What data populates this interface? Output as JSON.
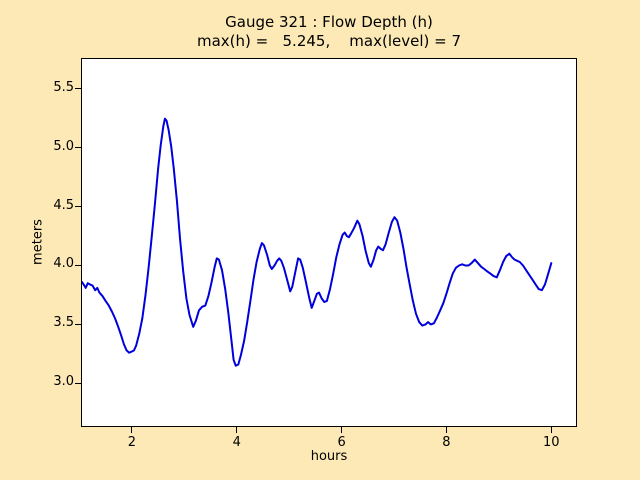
{
  "figure": {
    "background_color": "#FCE9B6",
    "plot_background_color": "#FFFFFF",
    "frame_color": "#000000",
    "title_line1": "Gauge 321 : Flow Depth (h)",
    "title_line2": "max(h) =   5.245,    max(level) = 7"
  },
  "chart_data": {
    "type": "line",
    "title": "Gauge 321 : Flow Depth (h)",
    "subtitle": "max(h) =   5.245,    max(level) = 7",
    "xlabel": "hours",
    "ylabel": "meters",
    "max_h": 5.245,
    "max_level": 7,
    "grid": false,
    "legend": "none",
    "xlim": [
      1.03,
      10.49
    ],
    "ylim": [
      2.63,
      5.76
    ],
    "x_tick_values": [
      2,
      4,
      6,
      8,
      10
    ],
    "x_tick_labels": [
      "2",
      "4",
      "6",
      "8",
      "10"
    ],
    "y_tick_values": [
      3.0,
      3.5,
      4.0,
      4.5,
      5.0,
      5.5
    ],
    "y_tick_labels": [
      "3.0",
      "3.5",
      "4.0",
      "4.5",
      "5.0",
      "5.5"
    ],
    "line_color": "#0000DD",
    "line_width": 2,
    "series": [
      {
        "name": "h",
        "x": [
          1.0,
          1.05,
          1.08,
          1.12,
          1.16,
          1.2,
          1.25,
          1.3,
          1.34,
          1.38,
          1.44,
          1.5,
          1.56,
          1.62,
          1.68,
          1.74,
          1.8,
          1.85,
          1.9,
          1.95,
          2.0,
          2.04,
          2.08,
          2.14,
          2.2,
          2.26,
          2.32,
          2.38,
          2.44,
          2.5,
          2.55,
          2.6,
          2.63,
          2.66,
          2.7,
          2.75,
          2.8,
          2.86,
          2.92,
          2.98,
          3.04,
          3.1,
          3.17,
          3.22,
          3.28,
          3.34,
          3.4,
          3.46,
          3.52,
          3.58,
          3.62,
          3.66,
          3.72,
          3.78,
          3.84,
          3.9,
          3.94,
          3.98,
          4.03,
          4.08,
          4.14,
          4.2,
          4.26,
          4.32,
          4.38,
          4.44,
          4.48,
          4.52,
          4.58,
          4.63,
          4.67,
          4.72,
          4.77,
          4.81,
          4.85,
          4.9,
          4.96,
          5.02,
          5.06,
          5.12,
          5.17,
          5.21,
          5.26,
          5.32,
          5.38,
          5.43,
          5.48,
          5.53,
          5.57,
          5.62,
          5.67,
          5.72,
          5.78,
          5.84,
          5.9,
          5.96,
          6.02,
          6.06,
          6.1,
          6.14,
          6.18,
          6.24,
          6.3,
          6.34,
          6.4,
          6.46,
          6.52,
          6.56,
          6.61,
          6.66,
          6.7,
          6.75,
          6.79,
          6.84,
          6.9,
          6.96,
          7.01,
          7.06,
          7.12,
          7.18,
          7.24,
          7.3,
          7.36,
          7.42,
          7.48,
          7.54,
          7.6,
          7.65,
          7.7,
          7.76,
          7.82,
          7.88,
          7.94,
          8.0,
          8.06,
          8.12,
          8.18,
          8.24,
          8.3,
          8.36,
          8.42,
          8.48,
          8.54,
          8.6,
          8.66,
          8.72,
          8.78,
          8.84,
          8.9,
          8.96,
          9.02,
          9.08,
          9.14,
          9.2,
          9.25,
          9.3,
          9.35,
          9.4,
          9.46,
          9.52,
          9.58,
          9.64,
          9.7,
          9.76,
          9.82,
          9.88,
          9.94,
          10.0
        ],
        "y": [
          3.84,
          3.86,
          3.84,
          3.81,
          3.85,
          3.84,
          3.83,
          3.79,
          3.81,
          3.77,
          3.74,
          3.7,
          3.66,
          3.61,
          3.55,
          3.48,
          3.4,
          3.33,
          3.28,
          3.26,
          3.27,
          3.28,
          3.32,
          3.42,
          3.55,
          3.75,
          3.98,
          4.25,
          4.52,
          4.82,
          5.02,
          5.18,
          5.245,
          5.23,
          5.15,
          5.01,
          4.82,
          4.55,
          4.22,
          3.95,
          3.72,
          3.58,
          3.48,
          3.53,
          3.62,
          3.65,
          3.66,
          3.74,
          3.86,
          3.99,
          4.06,
          4.05,
          3.96,
          3.8,
          3.6,
          3.36,
          3.2,
          3.15,
          3.16,
          3.24,
          3.36,
          3.52,
          3.7,
          3.88,
          4.03,
          4.14,
          4.19,
          4.17,
          4.09,
          4.0,
          3.97,
          4.0,
          4.04,
          4.06,
          4.04,
          3.98,
          3.88,
          3.78,
          3.82,
          3.95,
          4.06,
          4.05,
          3.98,
          3.86,
          3.73,
          3.64,
          3.7,
          3.76,
          3.77,
          3.72,
          3.69,
          3.7,
          3.8,
          3.93,
          4.07,
          4.18,
          4.26,
          4.28,
          4.25,
          4.24,
          4.27,
          4.32,
          4.38,
          4.35,
          4.25,
          4.12,
          4.02,
          3.99,
          4.05,
          4.13,
          4.16,
          4.14,
          4.13,
          4.18,
          4.28,
          4.37,
          4.41,
          4.38,
          4.28,
          4.14,
          3.98,
          3.84,
          3.7,
          3.59,
          3.52,
          3.49,
          3.5,
          3.52,
          3.5,
          3.51,
          3.56,
          3.62,
          3.68,
          3.76,
          3.85,
          3.93,
          3.98,
          4.0,
          4.01,
          4.0,
          4.0,
          4.02,
          4.05,
          4.02,
          3.99,
          3.97,
          3.95,
          3.93,
          3.91,
          3.9,
          3.96,
          4.03,
          4.08,
          4.1,
          4.07,
          4.05,
          4.04,
          4.03,
          4.0,
          3.96,
          3.92,
          3.88,
          3.84,
          3.8,
          3.79,
          3.84,
          3.93,
          4.02
        ]
      }
    ]
  }
}
